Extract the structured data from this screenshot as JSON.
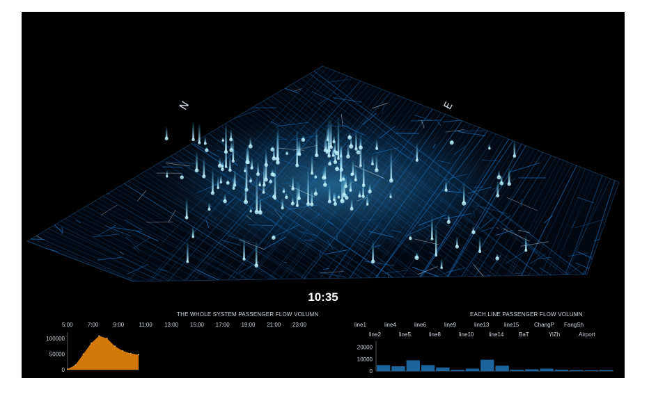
{
  "map": {
    "compass_n": "N",
    "compass_e": "E"
  },
  "clock": "10:35",
  "left_panel": {
    "title": "THE WHOLE SYSTEM PASSENGER FLOW VOLUMN",
    "time_ticks": [
      "5:00",
      "7:00",
      "9:00",
      "11:00",
      "13:00",
      "15:00",
      "17:00",
      "19:00",
      "21:00",
      "23:00"
    ]
  },
  "right_panel": {
    "title": "EACH LINE PASSENGER FLOW VOLUMN",
    "lines_row1": [
      "line1",
      "line4",
      "line6",
      "line9",
      "line13",
      "line15",
      "ChangP",
      "FangSh"
    ],
    "lines_row2": [
      "line2",
      "line5",
      "line8",
      "line10",
      "line14",
      "BaT",
      "YiZh",
      "Airport"
    ]
  },
  "chart_data": [
    {
      "type": "area",
      "title": "THE WHOLE SYSTEM PASSENGER FLOW VOLUMN",
      "ylim": [
        0,
        120000
      ],
      "yticks": [
        0,
        50000,
        100000
      ],
      "x": [
        "5:00",
        "6:00",
        "7:00",
        "7:30",
        "8:00",
        "8:30",
        "9:00",
        "9:30",
        "10:00",
        "10:35"
      ],
      "values": [
        2000,
        15000,
        50000,
        85000,
        108000,
        100000,
        75000,
        60000,
        52000,
        48000
      ],
      "color": "#e8850a"
    },
    {
      "type": "bar",
      "title": "EACH LINE PASSENGER FLOW VOLUMN",
      "ylim": [
        0,
        25000
      ],
      "yticks": [
        0,
        10000,
        20000
      ],
      "categories": [
        "line1",
        "line2",
        "line4",
        "line5",
        "line6",
        "line8",
        "line9",
        "line10",
        "line13",
        "line14",
        "line15",
        "BaT",
        "ChangP",
        "YiZh",
        "FangSh",
        "Airport"
      ],
      "values": [
        5000,
        4000,
        9000,
        5000,
        3000,
        1000,
        2000,
        9500,
        4500,
        1200,
        1500,
        2000,
        1200,
        800,
        600,
        800
      ],
      "color": "#1e6fae"
    }
  ],
  "colors": {
    "background": "#000000",
    "map_lines": "#1e78c8",
    "map_glow": "#bff4ff",
    "area": "#e8850a",
    "bars": "#1e6fae"
  }
}
